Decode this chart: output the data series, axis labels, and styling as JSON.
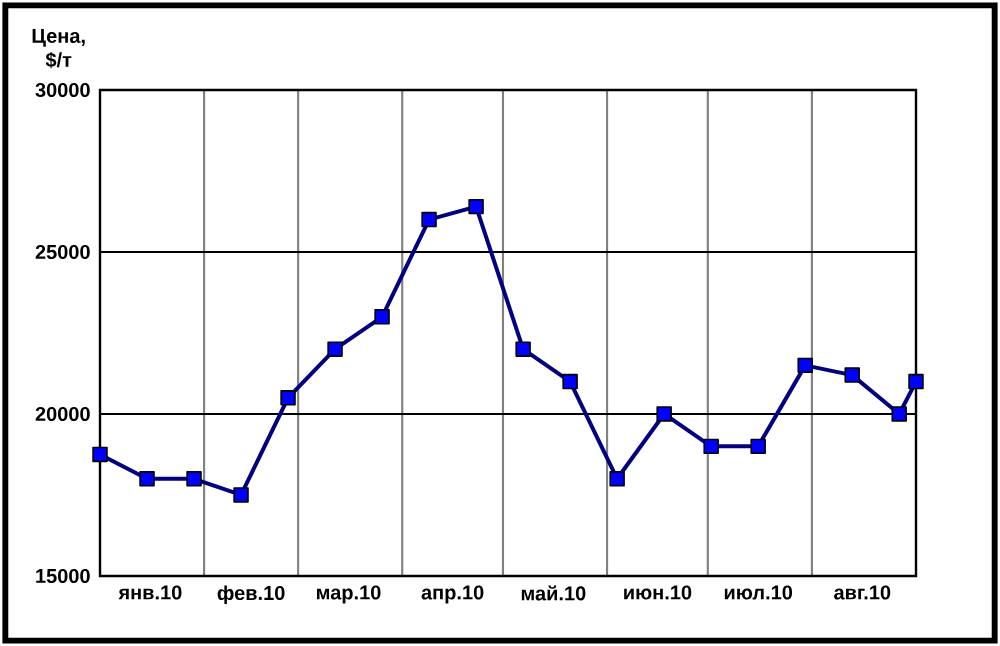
{
  "chart_data": {
    "type": "line",
    "ylabel": "Цена, $/т",
    "x": [
      "2010-01-01",
      "2010-01-15",
      "2010-01-29",
      "2010-02-12",
      "2010-02-26",
      "2010-03-12",
      "2010-03-26",
      "2010-04-09",
      "2010-04-23",
      "2010-05-07",
      "2010-05-21",
      "2010-06-04",
      "2010-06-18",
      "2010-07-02",
      "2010-07-16",
      "2010-07-30",
      "2010-08-13",
      "2010-08-27",
      "2010-09-01"
    ],
    "series": [
      {
        "color": "#000080",
        "values": [
          18750,
          18000,
          18000,
          17500,
          20500,
          22000,
          23000,
          26000,
          26400,
          22000,
          21000,
          18000,
          20000,
          19000,
          19000,
          21500,
          21200,
          20000,
          21000
        ]
      }
    ],
    "marker": "square",
    "xlim": [
      "2010-01-01",
      "2010-09-01"
    ],
    "xticks": [
      {
        "value": "2010-02-01",
        "label": null
      },
      {
        "value": "2010-03-01",
        "label": null
      },
      {
        "value": "2010-04-01",
        "label": null
      },
      {
        "value": "2010-05-01",
        "label": null
      },
      {
        "value": "2010-06-01",
        "label": null
      },
      {
        "value": "2010-07-01",
        "label": null
      },
      {
        "value": "2010-08-01",
        "label": null
      },
      {
        "value": "2010-01-16",
        "label": "янв.10"
      },
      {
        "value": "2010-02-15",
        "label": "фев.10"
      },
      {
        "value": "2010-03-16",
        "label": "мар.10"
      },
      {
        "value": "2010-04-16",
        "label": "апр.10"
      },
      {
        "value": "2010-05-16",
        "label": "май.10"
      },
      {
        "value": "2010-06-16",
        "label": "июн.10"
      },
      {
        "value": "2010-07-16",
        "label": "июл.10"
      },
      {
        "value": "2010-08-16",
        "label": "авг.10"
      }
    ],
    "ylim": [
      15000,
      30000
    ],
    "yticks": [
      15000,
      20000,
      25000,
      30000
    ],
    "grid": true
  }
}
